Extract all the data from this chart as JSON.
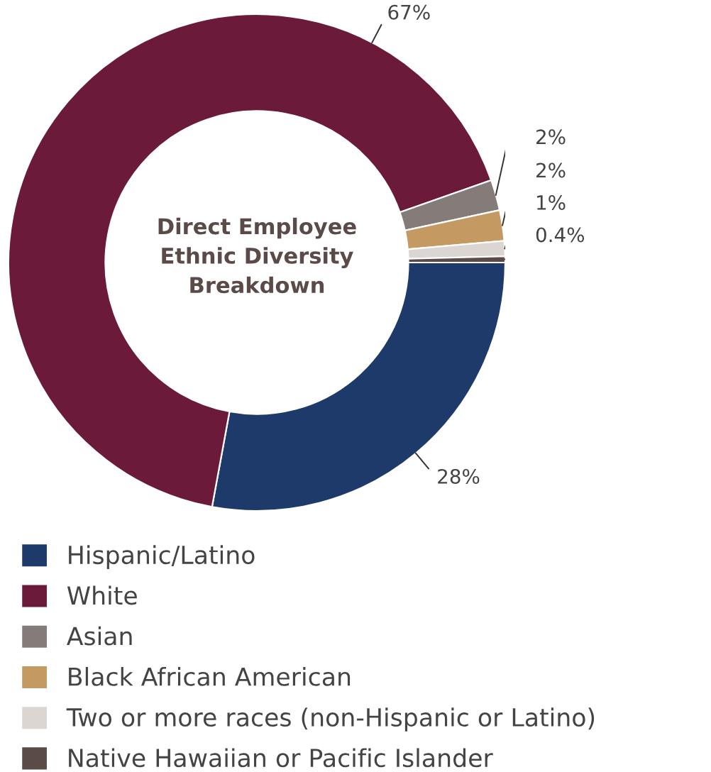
{
  "chart_data": {
    "type": "donut",
    "title": "Direct Employee Ethnic Diversity Breakdown",
    "categories": [
      "Hispanic/Latino",
      "White",
      "Asian",
      "Black African American",
      "Two or more races (non-Hispanic or Latino)",
      "Native Hawaiian or Pacific Islander"
    ],
    "values": [
      28,
      67,
      2,
      2,
      1,
      0.4
    ],
    "colors": [
      "#1d3a6b",
      "#6b1a3a",
      "#857b78",
      "#c49a62",
      "#dcd6d2",
      "#5a4a48"
    ],
    "value_labels": [
      "28%",
      "67%",
      "2%",
      "2%",
      "1%",
      "0.4%"
    ],
    "legend": "bottom"
  }
}
